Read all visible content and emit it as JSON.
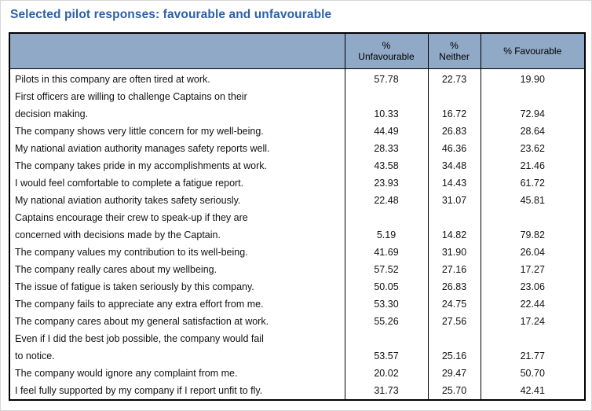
{
  "title": "Selected pilot responses: favourable and unfavourable",
  "colors": {
    "title": "#2E5FA8",
    "header_bg": "#8FA9C6",
    "table_border": "#000000"
  },
  "table": {
    "headers": [
      "",
      "%\nUnfavourable",
      "%\nNeither",
      "% Favourable"
    ],
    "rows": [
      {
        "statement": "Pilots in this company are often tired at work.",
        "unfavourable": "57.78",
        "neither": "22.73",
        "favourable": "19.90"
      },
      {
        "statement": "First officers are willing to challenge Captains on their\ndecision making.",
        "unfavourable": "10.33",
        "neither": "16.72",
        "favourable": "72.94"
      },
      {
        "statement": "The company shows very little concern for my well-being.",
        "unfavourable": "44.49",
        "neither": "26.83",
        "favourable": "28.64"
      },
      {
        "statement": "My national aviation authority manages safety reports well.",
        "unfavourable": "28.33",
        "neither": "46.36",
        "favourable": "23.62"
      },
      {
        "statement": "The company takes pride in my accomplishments at work.",
        "unfavourable": "43.58",
        "neither": "34.48",
        "favourable": "21.46"
      },
      {
        "statement": "I would feel comfortable to complete a fatigue report.",
        "unfavourable": "23.93",
        "neither": "14.43",
        "favourable": "61.72"
      },
      {
        "statement": "My national aviation authority takes safety seriously.",
        "unfavourable": "22.48",
        "neither": "31.07",
        "favourable": "45.81"
      },
      {
        "statement": "Captains encourage their crew to speak-up if they are\nconcerned with decisions made by the Captain.",
        "unfavourable": "5.19",
        "neither": "14.82",
        "favourable": "79.82"
      },
      {
        "statement": "The company values my contribution to its well-being.",
        "unfavourable": "41.69",
        "neither": "31.90",
        "favourable": "26.04"
      },
      {
        "statement": "The company really cares about my wellbeing.",
        "unfavourable": "57.52",
        "neither": "27.16",
        "favourable": "17.27"
      },
      {
        "statement": "The issue of fatigue is taken seriously by this company.",
        "unfavourable": "50.05",
        "neither": "26.83",
        "favourable": "23.06"
      },
      {
        "statement": "The company fails to appreciate any extra effort from me.",
        "unfavourable": "53.30",
        "neither": "24.75",
        "favourable": "22.44"
      },
      {
        "statement": "The company cares about my general satisfaction at work.",
        "unfavourable": "55.26",
        "neither": "27.56",
        "favourable": "17.24"
      },
      {
        "statement": "Even if I did the best job possible, the company would fail\nto notice.",
        "unfavourable": "53.57",
        "neither": "25.16",
        "favourable": "21.77"
      },
      {
        "statement": "The company would ignore any complaint from me.",
        "unfavourable": "20.02",
        "neither": "29.47",
        "favourable": "50.70"
      },
      {
        "statement": "I feel fully supported by my company if I report unfit to fly.",
        "unfavourable": "31.73",
        "neither": "25.70",
        "favourable": "42.41"
      }
    ]
  }
}
